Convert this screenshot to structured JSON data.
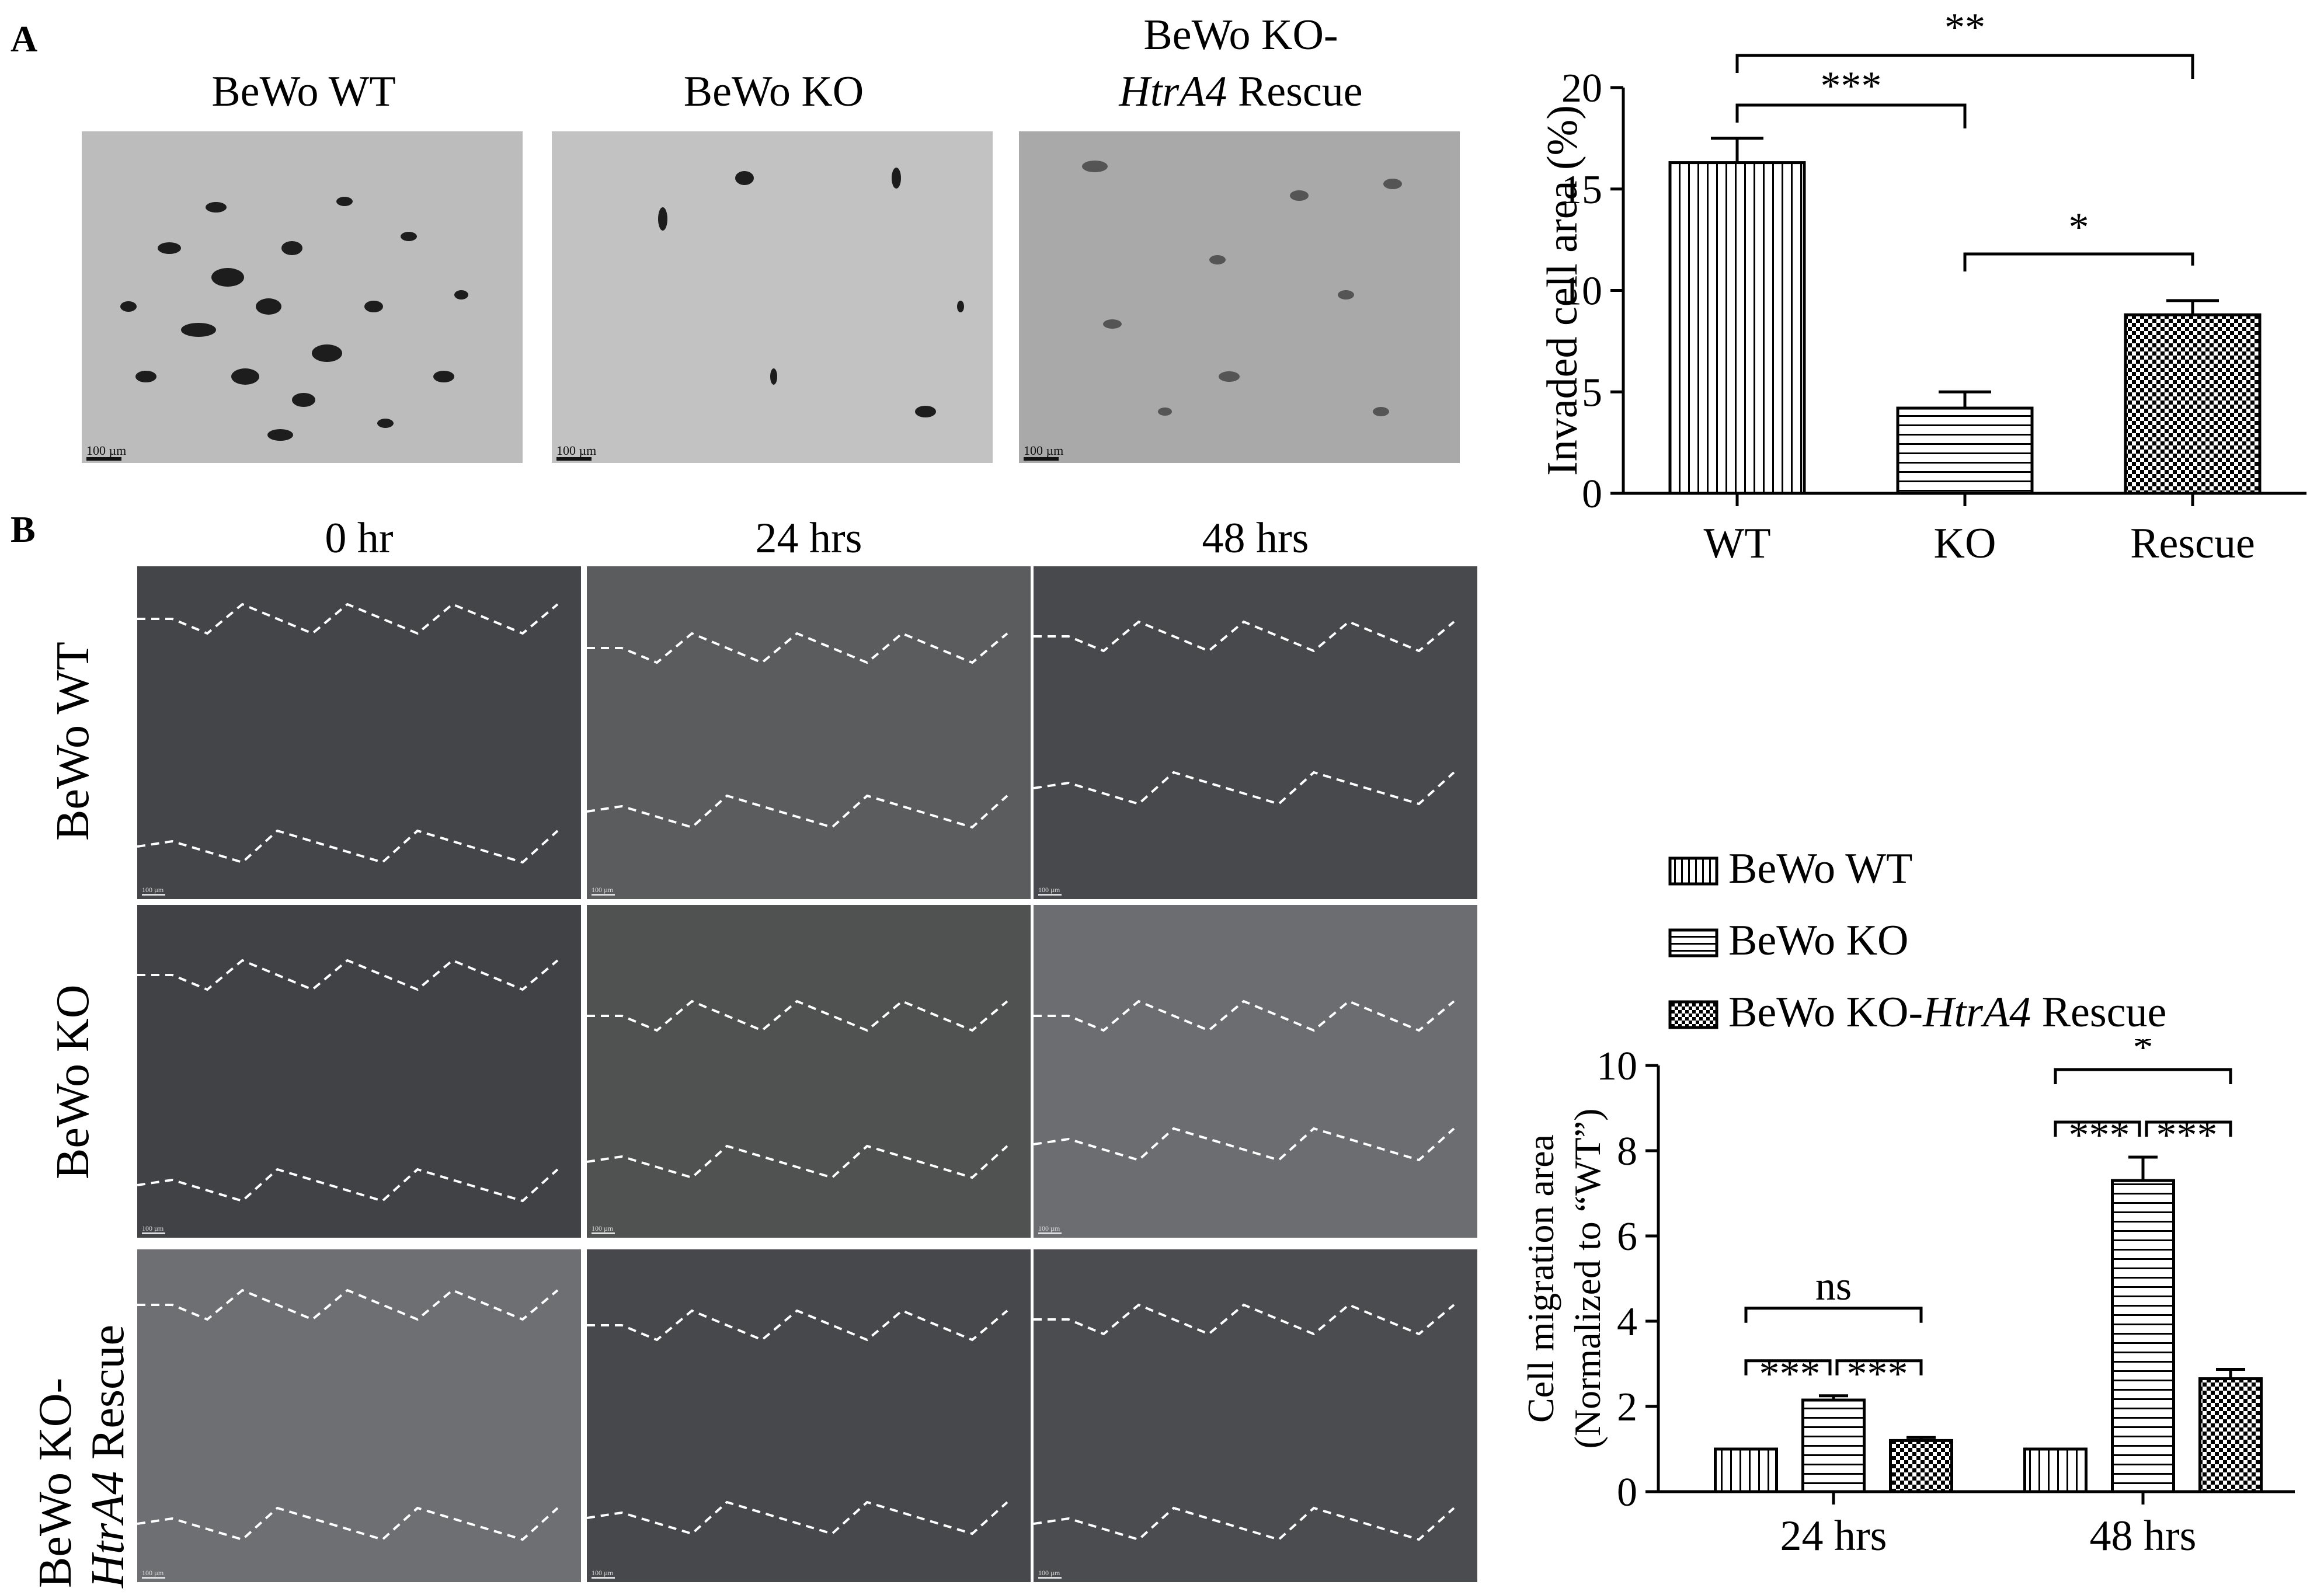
{
  "panelA": {
    "letter": "A",
    "image_titles": [
      "BeWo WT",
      "BeWo KO",
      "BeWo KO-",
      "HtrA4",
      " Rescue"
    ],
    "scale_label": "100 µm"
  },
  "panelB": {
    "letter": "B",
    "time_labels": [
      "0 hr",
      "24 hrs",
      "48 hrs"
    ],
    "row_labels": [
      "BeWo WT",
      "BeWo KO",
      "BeWo KO-",
      "HtrA4",
      " Rescue"
    ],
    "scale_label": "100 µm"
  },
  "colors": {
    "dark_micrograph": "#45474a",
    "light_micrograph": "#bcbcbc",
    "wound_line": "#ffffff"
  },
  "legend": {
    "items": [
      "BeWo WT",
      "BeWo KO",
      "BeWo KO-",
      "HtrA4",
      " Rescue"
    ]
  },
  "chart_data": [
    {
      "type": "bar",
      "categories": [
        "WT",
        "KO",
        "Rescue"
      ],
      "values": [
        16.3,
        4.2,
        8.8
      ],
      "errors": [
        1.2,
        0.8,
        0.7
      ],
      "patterns": [
        "vertical",
        "horizontal",
        "checker"
      ],
      "ylabel": "Invaded cell area (%)",
      "ylim": [
        0,
        20
      ],
      "yticks": [
        0,
        5,
        10,
        15,
        20
      ],
      "significance": [
        {
          "from": "WT",
          "to": "KO",
          "label": "***"
        },
        {
          "from": "WT",
          "to": "Rescue",
          "label": "**"
        },
        {
          "from": "KO",
          "to": "Rescue",
          "label": "*"
        }
      ]
    },
    {
      "type": "bar",
      "categories": [
        "24 hrs",
        "48 hrs"
      ],
      "series": [
        {
          "name": "BeWo WT",
          "values": [
            1.0,
            1.0
          ],
          "errors": [
            0.0,
            0.0
          ],
          "pattern": "vertical"
        },
        {
          "name": "BeWo KO-HtrA4 Rescue",
          "values": [
            1.2,
            2.65
          ],
          "errors": [
            0.07,
            0.22
          ],
          "pattern": "checker"
        },
        {
          "name": "BeWo KO",
          "values": [
            2.15,
            7.3
          ],
          "errors": [
            0.1,
            0.55
          ],
          "pattern": "horizontal"
        }
      ],
      "ylabel_lines": [
        "Cell migration area",
        "(Normalized to “WT”)"
      ],
      "ylim": [
        0,
        10
      ],
      "yticks": [
        0,
        2,
        4,
        6,
        8,
        10
      ],
      "significance": [
        {
          "group": "24 hrs",
          "labels": [
            "***",
            "***",
            "ns"
          ]
        },
        {
          "group": "48 hrs",
          "labels": [
            "***",
            "***",
            "*"
          ]
        }
      ]
    }
  ]
}
